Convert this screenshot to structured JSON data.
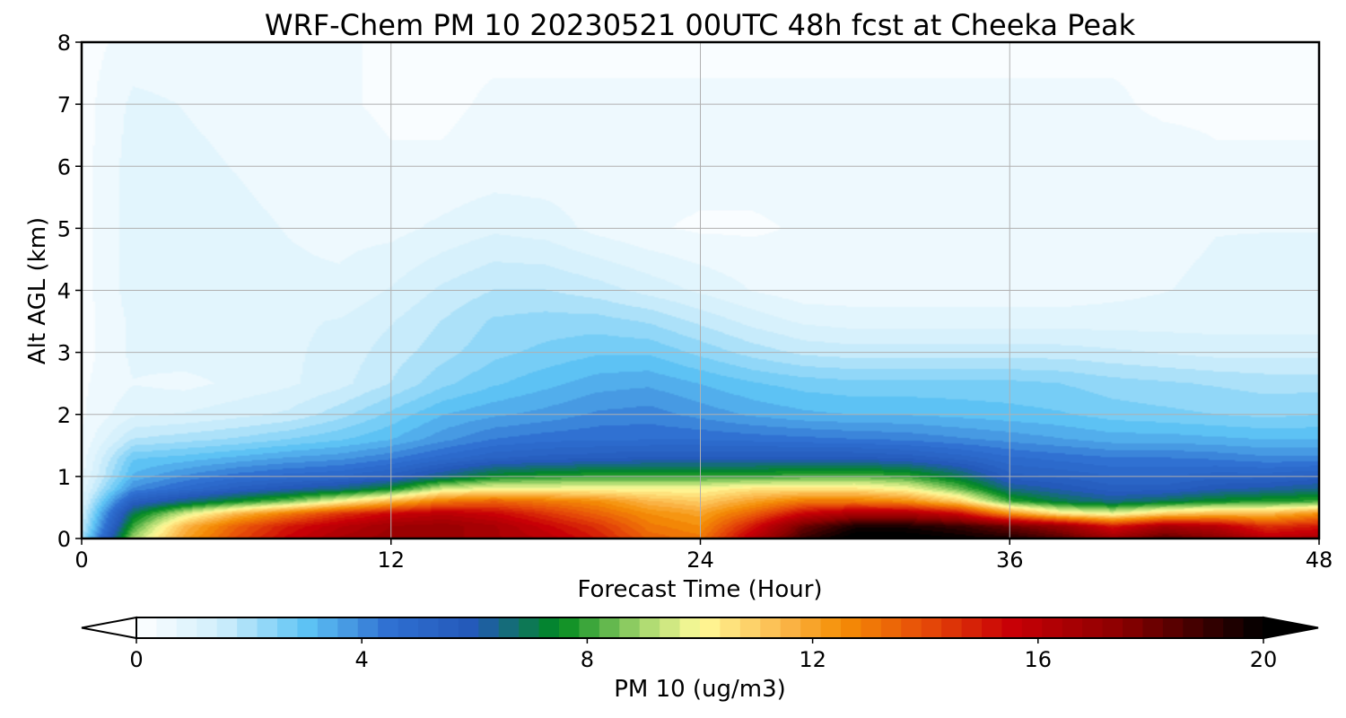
{
  "chart_data": {
    "type": "heatmap",
    "title": "WRF-Chem PM 10  20230521 00UTC 48h fcst at Cheeka Peak",
    "xlabel": "Forecast Time (Hour)",
    "ylabel": "Alt AGL (km)",
    "xlim": [
      0,
      48
    ],
    "ylim": [
      0,
      8
    ],
    "xticks": [
      "0",
      "12",
      "24",
      "36",
      "48"
    ],
    "yticks": [
      "0",
      "1",
      "2",
      "3",
      "4",
      "5",
      "6",
      "7",
      "8"
    ],
    "grid": true,
    "colorbar": {
      "label": "PM 10  (ug/m3)",
      "range": [
        0,
        20
      ],
      "ticks": [
        "0",
        "4",
        "8",
        "12",
        "16",
        "20"
      ],
      "extend": "both",
      "stops": [
        {
          "v": 0,
          "c": "#ffffff"
        },
        {
          "v": 1.5,
          "c": "#cfeefb"
        },
        {
          "v": 3,
          "c": "#5ec4f5"
        },
        {
          "v": 4.5,
          "c": "#2f6fd1"
        },
        {
          "v": 6,
          "c": "#2358b8"
        },
        {
          "v": 7.5,
          "c": "#008a1e"
        },
        {
          "v": 9,
          "c": "#a8d86e"
        },
        {
          "v": 10,
          "c": "#fffb9a"
        },
        {
          "v": 11.5,
          "c": "#fbb64a"
        },
        {
          "v": 12.5,
          "c": "#f58f06"
        },
        {
          "v": 14,
          "c": "#e64b08"
        },
        {
          "v": 15.5,
          "c": "#c90006"
        },
        {
          "v": 17.5,
          "c": "#8a0000"
        },
        {
          "v": 20,
          "c": "#000000"
        }
      ]
    },
    "field": {
      "x_hours": [
        0,
        2,
        4,
        6,
        8,
        10,
        12,
        14,
        16,
        18,
        20,
        22,
        24,
        26,
        28,
        30,
        32,
        34,
        36,
        38,
        40,
        42,
        44,
        46,
        48
      ],
      "y_km": [
        0,
        0.2,
        0.4,
        0.6,
        0.8,
        1.0,
        1.3,
        1.6,
        2.0,
        2.5,
        3.0,
        3.5,
        4.0,
        5.0,
        6.0,
        7.0,
        8.0
      ],
      "values": [
        [
          2.0,
          9.0,
          12.0,
          14.0,
          15.5,
          16.5,
          17.0,
          17.0,
          16.5,
          16.0,
          15.0,
          13.5,
          13.0,
          16.0,
          19.0,
          20.5,
          20.5,
          20.0,
          19.5,
          18.5,
          17.0,
          18.5,
          17.5,
          16.0,
          16.5
        ],
        [
          1.5,
          8.0,
          11.5,
          13.5,
          15.0,
          16.0,
          16.8,
          17.0,
          16.5,
          15.5,
          14.5,
          13.0,
          12.5,
          15.0,
          18.0,
          19.5,
          19.5,
          19.0,
          18.0,
          17.0,
          15.0,
          16.5,
          16.0,
          14.5,
          15.0
        ],
        [
          1.3,
          7.0,
          9.5,
          11.5,
          13.0,
          14.5,
          15.5,
          16.0,
          15.5,
          14.5,
          13.5,
          12.5,
          12.0,
          13.5,
          15.5,
          16.5,
          16.5,
          15.5,
          12.5,
          10.5,
          9.8,
          11.0,
          11.5,
          11.5,
          12.5
        ],
        [
          1.0,
          5.5,
          6.5,
          7.5,
          8.5,
          10.0,
          11.5,
          13.0,
          13.5,
          13.0,
          12.5,
          11.5,
          11.0,
          12.0,
          13.0,
          13.0,
          12.5,
          11.0,
          8.0,
          7.0,
          6.5,
          7.0,
          7.5,
          7.8,
          8.0
        ],
        [
          0.8,
          4.0,
          4.8,
          5.5,
          6.0,
          6.5,
          7.5,
          9.5,
          10.0,
          10.0,
          10.0,
          10.0,
          10.0,
          10.5,
          10.5,
          10.5,
          10.0,
          8.5,
          6.5,
          6.0,
          5.5,
          5.5,
          6.0,
          6.2,
          6.5
        ],
        [
          0.6,
          3.3,
          4.0,
          4.5,
          4.8,
          5.0,
          5.5,
          6.5,
          7.5,
          7.8,
          8.0,
          8.0,
          8.0,
          8.0,
          8.2,
          8.3,
          8.0,
          7.0,
          5.5,
          5.3,
          5.0,
          5.0,
          5.2,
          5.2,
          5.5
        ],
        [
          0.5,
          2.8,
          3.0,
          3.3,
          3.6,
          3.8,
          4.2,
          4.8,
          5.3,
          5.5,
          5.6,
          5.8,
          5.8,
          5.8,
          5.8,
          5.8,
          5.6,
          5.2,
          4.7,
          4.5,
          4.3,
          4.3,
          4.2,
          4.0,
          4.0
        ],
        [
          0.4,
          1.8,
          2.0,
          2.2,
          2.5,
          2.8,
          3.2,
          3.8,
          4.3,
          4.5,
          4.6,
          4.6,
          4.6,
          4.5,
          4.4,
          4.3,
          4.2,
          4.0,
          3.8,
          3.6,
          3.4,
          3.4,
          3.3,
          3.2,
          3.2
        ],
        [
          0.3,
          1.0,
          1.1,
          1.3,
          1.5,
          2.0,
          2.6,
          3.2,
          3.5,
          3.7,
          4.0,
          4.1,
          3.8,
          3.5,
          3.3,
          3.2,
          3.2,
          3.1,
          3.0,
          2.9,
          2.7,
          2.6,
          2.5,
          2.4,
          2.5
        ],
        [
          0.3,
          0.7,
          0.6,
          0.8,
          1.0,
          1.3,
          1.8,
          2.4,
          2.8,
          3.1,
          3.4,
          3.5,
          3.2,
          2.9,
          2.7,
          2.6,
          2.6,
          2.6,
          2.6,
          2.5,
          2.3,
          2.2,
          2.1,
          2.0,
          2.0
        ],
        [
          0.2,
          0.8,
          0.9,
          0.9,
          1.0,
          1.2,
          1.6,
          2.0,
          2.4,
          2.6,
          2.8,
          2.8,
          2.4,
          2.0,
          1.7,
          1.6,
          1.6,
          1.6,
          1.6,
          1.6,
          1.5,
          1.4,
          1.3,
          1.3,
          1.3
        ],
        [
          0.2,
          0.8,
          0.9,
          1.0,
          1.0,
          1.1,
          1.4,
          1.8,
          2.2,
          2.3,
          2.3,
          2.1,
          1.7,
          1.3,
          1.0,
          0.9,
          0.9,
          0.9,
          0.9,
          0.9,
          0.9,
          0.9,
          0.9,
          0.9,
          0.9
        ],
        [
          0.2,
          0.9,
          0.9,
          0.8,
          0.8,
          0.8,
          1.1,
          1.5,
          1.8,
          1.8,
          1.6,
          1.3,
          1.0,
          0.7,
          0.5,
          0.5,
          0.5,
          0.5,
          0.5,
          0.5,
          0.6,
          0.7,
          0.8,
          0.9,
          0.9
        ],
        [
          0.2,
          0.9,
          0.9,
          0.8,
          0.7,
          0.6,
          0.6,
          0.8,
          1.0,
          0.9,
          0.6,
          0.4,
          0.3,
          0.3,
          0.4,
          0.4,
          0.4,
          0.5,
          0.6,
          0.5,
          0.5,
          0.6,
          0.7,
          0.7,
          0.7
        ],
        [
          0.2,
          0.9,
          0.8,
          0.7,
          0.6,
          0.5,
          0.4,
          0.4,
          0.5,
          0.5,
          0.5,
          0.5,
          0.5,
          0.5,
          0.5,
          0.5,
          0.5,
          0.5,
          0.7,
          0.6,
          0.5,
          0.5,
          0.4,
          0.4,
          0.4
        ],
        [
          0.2,
          0.8,
          0.7,
          0.6,
          0.5,
          0.4,
          0.3,
          0.3,
          0.4,
          0.4,
          0.4,
          0.4,
          0.4,
          0.4,
          0.4,
          0.4,
          0.4,
          0.4,
          0.4,
          0.4,
          0.4,
          0.3,
          0.3,
          0.3,
          0.3
        ],
        [
          0.2,
          0.5,
          0.5,
          0.5,
          0.4,
          0.4,
          0.3,
          0.3,
          0.3,
          0.3,
          0.3,
          0.3,
          0.3,
          0.3,
          0.3,
          0.3,
          0.3,
          0.3,
          0.3,
          0.3,
          0.3,
          0.3,
          0.3,
          0.3,
          0.3
        ]
      ]
    }
  }
}
